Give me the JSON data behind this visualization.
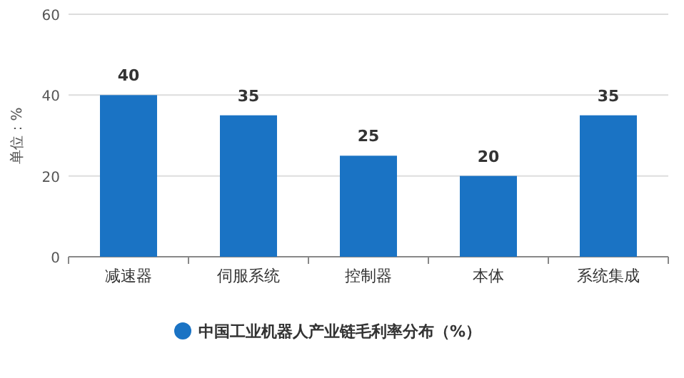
{
  "chart_data": {
    "type": "bar",
    "ylabel": "单位：%",
    "categories": [
      "减速器",
      "伺服系统",
      "控制器",
      "本体",
      "系统集成"
    ],
    "series": [
      {
        "name": "中国工业机器人产业链毛利率分布（%）",
        "color": "#1a73c4",
        "values": [
          40,
          35,
          25,
          20,
          35
        ]
      }
    ],
    "ylim": [
      0,
      60
    ],
    "yticks": [
      0,
      20,
      40,
      60
    ],
    "grid": "y",
    "legend": "bottom",
    "data_labels": true
  }
}
